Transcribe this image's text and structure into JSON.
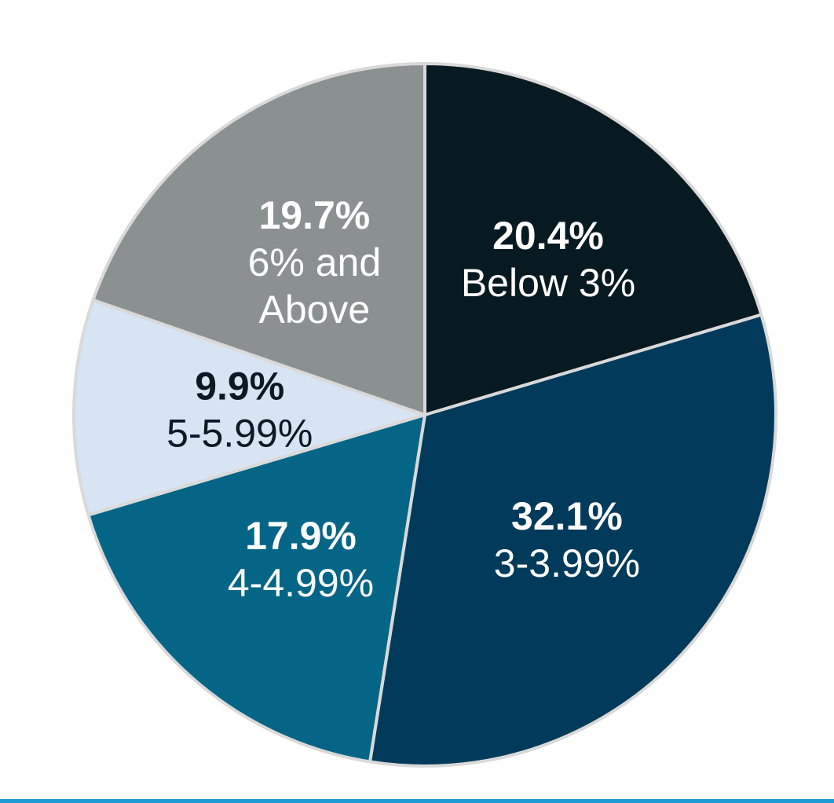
{
  "chart_data": {
    "type": "pie",
    "start_angle_deg": 0,
    "direction": "clockwise",
    "slices": [
      {
        "value": 20.4,
        "pct_label": "20.4%",
        "category_lines": [
          "Below 3%"
        ],
        "color": "#071a21",
        "text_color": "#ffffff"
      },
      {
        "value": 32.1,
        "pct_label": "32.1%",
        "category_lines": [
          "3-3.99%"
        ],
        "color": "#013a5a",
        "text_color": "#ffffff"
      },
      {
        "value": 17.9,
        "pct_label": "17.9%",
        "category_lines": [
          "4-4.99%"
        ],
        "color": "#056587",
        "text_color": "#ffffff"
      },
      {
        "value": 9.9,
        "pct_label": "9.9%",
        "category_lines": [
          "5-5.99%"
        ],
        "color": "#d6e4f3",
        "text_color": "#0b1a22"
      },
      {
        "value": 19.7,
        "pct_label": "19.7%",
        "category_lines": [
          "6% and",
          "Above"
        ],
        "color": "#8b9191",
        "text_color": "#ffffff"
      }
    ],
    "border_color": "#d9d9d9"
  },
  "accent_rule_color": "#1d9ad6"
}
